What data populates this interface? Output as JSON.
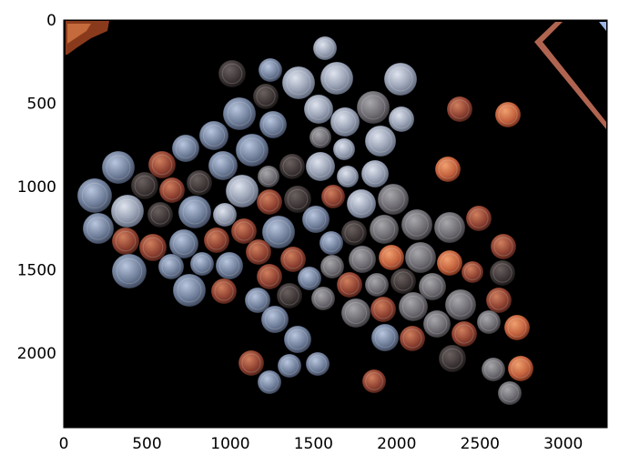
{
  "figure": {
    "image_description_colors": {
      "background": "#000000",
      "silver_coin": "#a7aebe",
      "copper_coin": "#9a4a33",
      "dark_coin": "#3a3a3a"
    },
    "axes": {
      "x_ticks": [
        "0",
        "500",
        "1000",
        "1500",
        "2000",
        "2500",
        "3000"
      ],
      "y_ticks": [
        "0",
        "500",
        "1000",
        "1500",
        "2000"
      ],
      "x_range": [
        0,
        3264
      ],
      "y_range": [
        0,
        2448
      ],
      "y_inverted": true
    }
  }
}
